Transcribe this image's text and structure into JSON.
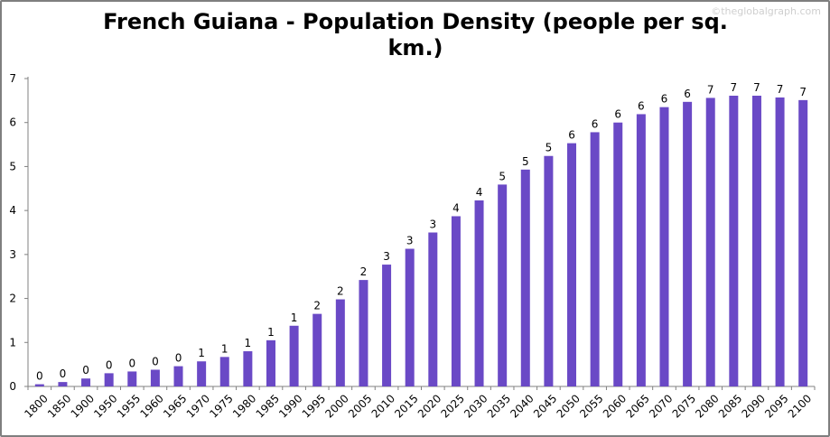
{
  "watermark": "©theglobalgraph.com",
  "chart_data": {
    "type": "bar",
    "title": "French Guiana - Population Density (people per sq. km.)",
    "title_lines": [
      "French Guiana - Population Density (people per sq.",
      "km.)"
    ],
    "xlabel": "",
    "ylabel": "",
    "ylim": [
      0,
      7
    ],
    "yticks": [
      0,
      1,
      2,
      3,
      4,
      5,
      6,
      7
    ],
    "grid": false,
    "legend": "none",
    "bar_color": "#6a49c6",
    "categories": [
      "1800",
      "1850",
      "1900",
      "1950",
      "1955",
      "1960",
      "1965",
      "1970",
      "1975",
      "1980",
      "1985",
      "1990",
      "1995",
      "2000",
      "2005",
      "2010",
      "2015",
      "2020",
      "2025",
      "2030",
      "2035",
      "2040",
      "2045",
      "2050",
      "2055",
      "2060",
      "2065",
      "2070",
      "2075",
      "2080",
      "2085",
      "2090",
      "2095",
      "2100"
    ],
    "values": [
      0.05,
      0.1,
      0.18,
      0.3,
      0.34,
      0.38,
      0.46,
      0.57,
      0.67,
      0.8,
      1.05,
      1.38,
      1.65,
      1.98,
      2.42,
      2.77,
      3.13,
      3.5,
      3.87,
      4.23,
      4.59,
      4.93,
      5.24,
      5.53,
      5.78,
      6.0,
      6.19,
      6.35,
      6.47,
      6.56,
      6.61,
      6.61,
      6.57,
      6.51
    ],
    "data_labels": [
      "0",
      "0",
      "0",
      "0",
      "0",
      "0",
      "0",
      "1",
      "1",
      "1",
      "1",
      "1",
      "2",
      "2",
      "2",
      "3",
      "3",
      "3",
      "4",
      "4",
      "5",
      "5",
      "5",
      "6",
      "6",
      "6",
      "6",
      "6",
      "6",
      "7",
      "7",
      "7",
      "7",
      "7"
    ]
  }
}
